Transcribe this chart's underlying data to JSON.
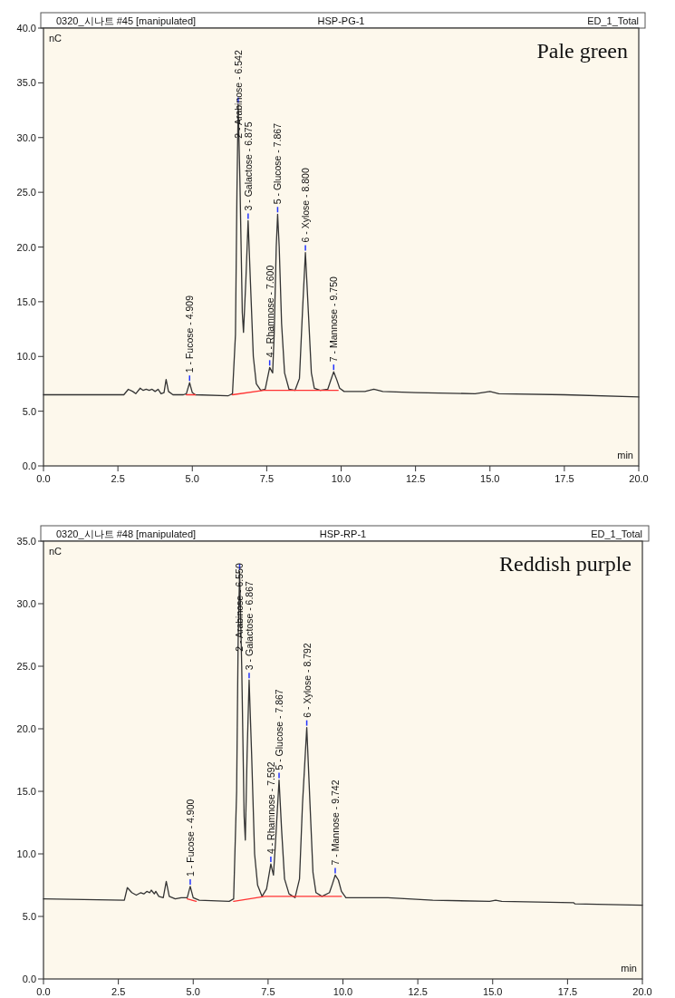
{
  "chart_data": [
    {
      "type": "line",
      "title": "HSP-PG-1",
      "xlabel": "min",
      "ylabel": "nC",
      "annotations": [
        "0320_시나트 #45 [manipulated]",
        "ED_1_Total",
        "Pale green",
        {
          "text": "1 - Fucose - 4.909",
          "x": 4.909,
          "y": 7.6
        },
        {
          "text": "2 - Arabinose - 6.542",
          "x": 6.542,
          "y": 33
        },
        {
          "text": "3 - Galactose - 6.875",
          "x": 6.875,
          "y": 22.4
        },
        {
          "text": "4 - Rhamnose - 7.600",
          "x": 7.6,
          "y": 9.0
        },
        {
          "text": "5 - Glucose - 7.867",
          "x": 7.867,
          "y": 23.0
        },
        {
          "text": "6 - Xylose - 8.800",
          "x": 8.8,
          "y": 19.5
        },
        {
          "text": "7 - Mannose - 9.750",
          "x": 9.75,
          "y": 8.6
        }
      ],
      "xlim": [
        0,
        20
      ],
      "ylim": [
        0,
        40
      ],
      "xticks": [
        {
          "value": 0,
          "label": "0.0"
        },
        {
          "value": 2.5,
          "label": "2.5"
        },
        {
          "value": 5,
          "label": "5.0"
        },
        {
          "value": 7.5,
          "label": "7.5"
        },
        {
          "value": 10,
          "label": "10.0"
        },
        {
          "value": 12.5,
          "label": "12.5"
        },
        {
          "value": 15,
          "label": "15.0"
        },
        {
          "value": 17.5,
          "label": "17.5"
        },
        {
          "value": 20,
          "label": "20.0"
        }
      ],
      "yticks": [
        {
          "value": 0,
          "label": "0.0"
        },
        {
          "value": 5,
          "label": "5.0"
        },
        {
          "value": 10,
          "label": "10.0"
        },
        {
          "value": 15,
          "label": "15.0"
        },
        {
          "value": 20,
          "label": "20.0"
        },
        {
          "value": 25,
          "label": "25.0"
        },
        {
          "value": 30,
          "label": "30.0"
        },
        {
          "value": 35,
          "label": "35.0"
        },
        {
          "value": 40,
          "label": "40.0"
        }
      ],
      "series": [
        {
          "color": "#333333",
          "x": [
            0,
            2.7,
            2.85,
            3.0,
            3.1,
            3.25,
            3.35,
            3.45,
            3.55,
            3.65,
            3.75,
            3.85,
            3.95,
            4.05,
            4.12,
            4.2,
            4.35,
            4.7,
            4.8,
            4.909,
            5.0,
            5.1,
            6.2,
            6.35,
            6.45,
            6.5,
            6.542,
            6.6,
            6.68,
            6.72,
            6.8,
            6.875,
            6.95,
            7.05,
            7.15,
            7.3,
            7.45,
            7.6,
            7.7,
            7.75,
            7.82,
            7.867,
            7.92,
            8.0,
            8.1,
            8.25,
            8.45,
            8.6,
            8.7,
            8.8,
            8.9,
            9.0,
            9.1,
            9.3,
            9.55,
            9.65,
            9.75,
            9.85,
            9.95,
            10.1,
            10.8,
            11.1,
            11.4,
            12.5,
            14.5,
            15.0,
            15.3,
            17.5,
            20
          ],
          "values": [
            6.5,
            6.5,
            7.0,
            6.8,
            6.6,
            7.1,
            6.9,
            7.0,
            6.9,
            7.0,
            6.8,
            7.0,
            6.6,
            6.7,
            7.9,
            6.8,
            6.5,
            6.5,
            6.6,
            7.6,
            6.7,
            6.5,
            6.4,
            6.6,
            12,
            25,
            33,
            26,
            14,
            12.2,
            17,
            22.4,
            17,
            10,
            7.5,
            6.9,
            7.0,
            9.0,
            8.5,
            12,
            20,
            23.0,
            20,
            13,
            8.5,
            7.0,
            6.9,
            8,
            14,
            19.5,
            14,
            8.5,
            7.1,
            6.9,
            7.0,
            7.8,
            8.6,
            7.9,
            7.1,
            6.8,
            6.8,
            7.0,
            6.8,
            6.7,
            6.6,
            6.8,
            6.6,
            6.5,
            6.3
          ]
        },
        {
          "color": "#ff3333",
          "x": [
            4.8,
            5.1
          ],
          "values": [
            6.5,
            6.5
          ]
        },
        {
          "color": "#ff3333",
          "x": [
            6.35,
            7.4,
            9.9
          ],
          "values": [
            6.5,
            6.9,
            6.9
          ]
        }
      ]
    },
    {
      "type": "line",
      "title": "HSP-RP-1",
      "xlabel": "min",
      "ylabel": "nC",
      "annotations": [
        "0320_시나트 #48 [manipulated]",
        "ED_1_Total",
        "Reddish purple",
        {
          "text": "1 - Fucose - 4.900",
          "x": 4.9,
          "y": 7.4
        },
        {
          "text": "2 - Arabinose - 6.550",
          "x": 6.55,
          "y": 32.6
        },
        {
          "text": "3 - Galactose - 6.867",
          "x": 6.867,
          "y": 23.9
        },
        {
          "text": "4 - Rhamnose - 7.592",
          "x": 7.592,
          "y": 9.2
        },
        {
          "text": "5 - Glucose - 7.867",
          "x": 7.867,
          "y": 15.9
        },
        {
          "text": "6 - Xylose - 8.792",
          "x": 8.792,
          "y": 20.1
        },
        {
          "text": "7 - Mannose - 9.742",
          "x": 9.742,
          "y": 8.3
        }
      ],
      "xlim": [
        0,
        20
      ],
      "ylim": [
        0,
        35
      ],
      "xticks": [
        {
          "value": 0,
          "label": "0.0"
        },
        {
          "value": 2.5,
          "label": "2.5"
        },
        {
          "value": 5,
          "label": "5.0"
        },
        {
          "value": 7.5,
          "label": "7.5"
        },
        {
          "value": 10,
          "label": "10.0"
        },
        {
          "value": 12.5,
          "label": "12.5"
        },
        {
          "value": 15,
          "label": "15.0"
        },
        {
          "value": 17.5,
          "label": "17.5"
        },
        {
          "value": 20,
          "label": "20.0"
        }
      ],
      "yticks": [
        {
          "value": 0,
          "label": "0.0"
        },
        {
          "value": 5,
          "label": "5.0"
        },
        {
          "value": 10,
          "label": "10.0"
        },
        {
          "value": 15,
          "label": "15.0"
        },
        {
          "value": 20,
          "label": "20.0"
        },
        {
          "value": 25,
          "label": "25.0"
        },
        {
          "value": 30,
          "label": "30.0"
        },
        {
          "value": 35,
          "label": "35.0"
        }
      ],
      "series": [
        {
          "color": "#333333",
          "x": [
            0,
            2.7,
            2.8,
            2.95,
            3.1,
            3.25,
            3.35,
            3.45,
            3.55,
            3.6,
            3.7,
            3.75,
            3.85,
            4.0,
            4.1,
            4.2,
            4.4,
            4.6,
            4.8,
            4.9,
            5.0,
            5.2,
            6.2,
            6.35,
            6.45,
            6.5,
            6.55,
            6.62,
            6.7,
            6.74,
            6.8,
            6.867,
            6.95,
            7.05,
            7.15,
            7.3,
            7.45,
            7.592,
            7.68,
            7.75,
            7.867,
            7.95,
            8.05,
            8.2,
            8.4,
            8.55,
            8.65,
            8.792,
            8.9,
            9.0,
            9.1,
            9.3,
            9.55,
            9.65,
            9.742,
            9.85,
            9.95,
            10.1,
            11.5,
            13.0,
            14.9,
            15.1,
            15.3,
            17.7,
            17.75,
            20
          ],
          "values": [
            6.4,
            6.3,
            7.3,
            6.9,
            6.7,
            6.9,
            6.8,
            7.0,
            6.9,
            7.1,
            6.8,
            7.0,
            6.6,
            6.5,
            7.8,
            6.6,
            6.4,
            6.5,
            6.5,
            7.4,
            6.5,
            6.3,
            6.2,
            6.4,
            15,
            27,
            32.6,
            25,
            13,
            11.1,
            18,
            23.9,
            18,
            10,
            7.5,
            6.6,
            7.2,
            9.2,
            8.3,
            11,
            15.9,
            12,
            8,
            6.8,
            6.5,
            8,
            14,
            20.1,
            14,
            8.5,
            6.9,
            6.6,
            6.9,
            7.6,
            8.3,
            7.9,
            7.0,
            6.5,
            6.5,
            6.3,
            6.2,
            6.3,
            6.2,
            6.1,
            6.0,
            5.9
          ]
        },
        {
          "color": "#ff3333",
          "x": [
            4.8,
            5.1
          ],
          "values": [
            6.4,
            6.2
          ]
        },
        {
          "color": "#ff3333",
          "x": [
            6.35,
            7.4,
            9.95
          ],
          "values": [
            6.2,
            6.6,
            6.6
          ]
        }
      ]
    }
  ]
}
